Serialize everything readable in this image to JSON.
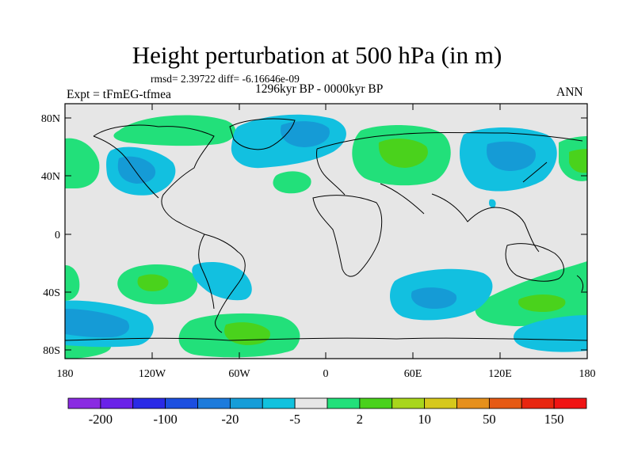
{
  "title": "Height perturbation at 500 hPa (in m)",
  "stats_line": "rmsd= 2.39722 diff= -6.16646e-09",
  "period": "1296kyr BP - 0000kyr BP",
  "experiment": "Expt = tFmEG-tfmea",
  "season": "ANN",
  "lat_labels": [
    "80N",
    "40N",
    "0",
    "40S",
    "80S"
  ],
  "lon_labels": [
    "180",
    "120W",
    "60W",
    "0",
    "60E",
    "120E",
    "180"
  ],
  "colorbar": {
    "colors": [
      "#8a2be2",
      "#6a22e8",
      "#2a2ae6",
      "#1c4fe0",
      "#1d7bdc",
      "#169dd8",
      "#11c2de",
      "#e6e6e6",
      "#22e07a",
      "#4ad21c",
      "#a8d61c",
      "#d6c81c",
      "#e6901c",
      "#e65a14",
      "#e8260f",
      "#f01414"
    ],
    "labels": [
      "-200",
      "-100",
      "-20",
      "-5",
      "2",
      "10",
      "50",
      "150"
    ]
  },
  "field_palette": {
    "neg_strong": "#159bd6",
    "neg_weak": "#12c0e0",
    "neutral": "#e6e6e6",
    "pos_weak": "#22e07a",
    "pos_strong": "#4ad21c"
  }
}
